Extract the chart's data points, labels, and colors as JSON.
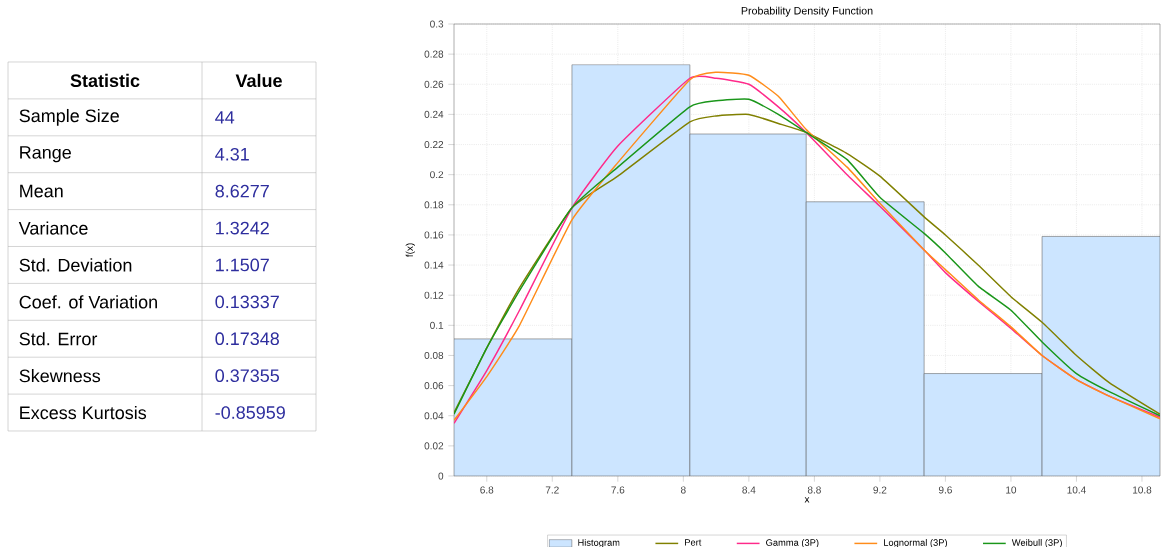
{
  "chart_data": [
    {
      "type": "other",
      "xlabel": "Statistic",
      "ylabel": "Value",
      "categories": [
        "Sample Size",
        "Range",
        "Mean",
        "Variance",
        "Std. Deviation",
        "Coef. of Variation",
        "Std. Error",
        "Skewness",
        "Excess Kurtosis"
      ],
      "values": [
        44,
        4.31,
        8.6277,
        1.3242,
        1.1507,
        0.13337,
        0.17348,
        0.37355,
        -0.85959
      ],
      "data_labels": true
    },
    {
      "type": "histogram",
      "title": "Probability Density Function",
      "xlabel": "x",
      "ylabel": "f(x)",
      "bins": [
        6.6,
        7.32,
        8.04,
        8.75,
        9.47,
        10.19,
        10.91
      ],
      "series": [
        {
          "type": "histogram",
          "name": "Histogram",
          "color": "#cce5ff",
          "values": [
            0.091,
            0.273,
            0.227,
            0.182,
            0.068,
            0.159
          ]
        },
        {
          "type": "line",
          "name": "Pert",
          "color": "#808000",
          "x": [
            6.6,
            6.8,
            7.0,
            7.32,
            7.6,
            8.04,
            8.2,
            8.4,
            8.58,
            8.75,
            9.0,
            9.2,
            9.47,
            9.6,
            9.8,
            10.0,
            10.19,
            10.4,
            10.6,
            10.91
          ],
          "values": [
            0.042,
            0.085,
            0.125,
            0.178,
            0.199,
            0.235,
            0.239,
            0.24,
            0.234,
            0.228,
            0.214,
            0.199,
            0.172,
            0.16,
            0.14,
            0.119,
            0.102,
            0.08,
            0.062,
            0.041
          ]
        },
        {
          "type": "line",
          "name": "Gamma (3P)",
          "color": "#ff2a8a",
          "x": [
            6.6,
            6.8,
            7.0,
            7.32,
            7.6,
            8.04,
            8.2,
            8.4,
            8.58,
            8.75,
            9.0,
            9.2,
            9.47,
            9.6,
            9.8,
            10.0,
            10.19,
            10.4,
            10.6,
            10.91
          ],
          "values": [
            0.035,
            0.07,
            0.11,
            0.178,
            0.219,
            0.264,
            0.264,
            0.26,
            0.245,
            0.228,
            0.2,
            0.179,
            0.15,
            0.135,
            0.116,
            0.098,
            0.08,
            0.064,
            0.053,
            0.039
          ]
        },
        {
          "type": "line",
          "name": "Lognormal (3P)",
          "color": "#ff8c1a",
          "x": [
            6.6,
            6.8,
            7.0,
            7.32,
            7.6,
            8.04,
            8.2,
            8.4,
            8.58,
            8.75,
            9.0,
            9.2,
            9.47,
            9.6,
            9.8,
            10.0,
            10.19,
            10.4,
            10.6,
            10.91
          ],
          "values": [
            0.037,
            0.066,
            0.1,
            0.17,
            0.208,
            0.263,
            0.268,
            0.266,
            0.252,
            0.23,
            0.205,
            0.181,
            0.15,
            0.137,
            0.117,
            0.099,
            0.08,
            0.064,
            0.053,
            0.038
          ]
        },
        {
          "type": "line",
          "name": "Weibull (3P)",
          "color": "#1a961a",
          "x": [
            6.6,
            6.8,
            7.0,
            7.32,
            7.6,
            8.04,
            8.2,
            8.4,
            8.58,
            8.75,
            9.0,
            9.2,
            9.47,
            9.6,
            9.8,
            10.0,
            10.19,
            10.4,
            10.6,
            10.91
          ],
          "values": [
            0.041,
            0.085,
            0.123,
            0.178,
            0.205,
            0.245,
            0.249,
            0.25,
            0.24,
            0.228,
            0.21,
            0.185,
            0.161,
            0.148,
            0.126,
            0.11,
            0.089,
            0.068,
            0.056,
            0.04
          ]
        }
      ],
      "xlim": [
        6.6,
        10.91
      ],
      "ylim": [
        0,
        0.3
      ],
      "xticks": [
        6.8,
        7.2,
        7.6,
        8,
        8.4,
        8.8,
        9.2,
        9.6,
        10,
        10.4,
        10.8
      ],
      "yticks": [
        0,
        0.02,
        0.04,
        0.06,
        0.08,
        0.1,
        0.12,
        0.14,
        0.16,
        0.18,
        0.2,
        0.22,
        0.24,
        0.26,
        0.28,
        0.3
      ],
      "grid": true,
      "legend": "bottom"
    }
  ]
}
